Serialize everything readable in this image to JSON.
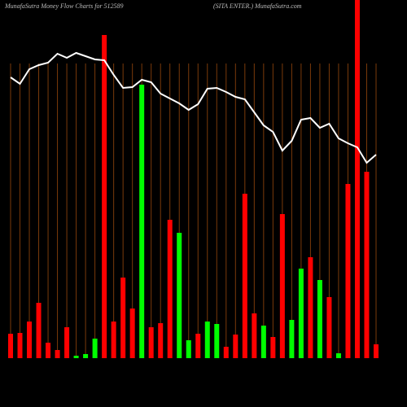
{
  "chart_data": {
    "type": "bar",
    "title": "MunafaSutra  Money Flow  Charts for 512589",
    "subtitle": "(SITA ENTER.) MunafaSutra.com",
    "ylim": [
      0,
      440
    ],
    "grid": true,
    "grid_color": "#7a3a0a",
    "series": [
      {
        "type": "bar",
        "values": [
          30,
          31,
          45,
          68,
          19,
          10,
          38,
          3,
          5,
          24,
          397,
          45,
          99,
          61,
          336,
          38,
          43,
          170,
          154,
          22,
          30,
          45,
          42,
          14,
          29,
          202,
          55,
          40,
          26,
          177,
          47,
          110,
          124,
          96,
          75,
          6,
          214,
          440,
          229,
          17
        ],
        "colors": [
          "#ff0000",
          "#ff0000",
          "#ff0000",
          "#ff0000",
          "#ff0000",
          "#ff0000",
          "#ff0000",
          "#00ff00",
          "#00ff00",
          "#00ff00",
          "#ff0000",
          "#ff0000",
          "#ff0000",
          "#ff0000",
          "#00ff00",
          "#ff0000",
          "#ff0000",
          "#ff0000",
          "#00ff00",
          "#00ff00",
          "#ff0000",
          "#00ff00",
          "#00ff00",
          "#ff0000",
          "#ff0000",
          "#ff0000",
          "#ff0000",
          "#00ff00",
          "#ff0000",
          "#ff0000",
          "#00ff00",
          "#00ff00",
          "#ff0000",
          "#00ff00",
          "#ff0000",
          "#00ff00",
          "#ff0000",
          "#ff0000",
          "#ff0000",
          "#ff0000"
        ]
      },
      {
        "type": "line",
        "color": "#ffffff",
        "values": [
          345,
          337,
          355,
          360,
          363,
          374,
          369,
          375,
          371,
          367,
          366,
          348,
          332,
          333,
          342,
          339,
          325,
          319,
          313,
          305,
          312,
          331,
          332,
          327,
          321,
          318,
          302,
          286,
          278,
          255,
          267,
          293,
          295,
          283,
          288,
          270,
          264,
          259,
          240,
          250
        ]
      }
    ]
  }
}
